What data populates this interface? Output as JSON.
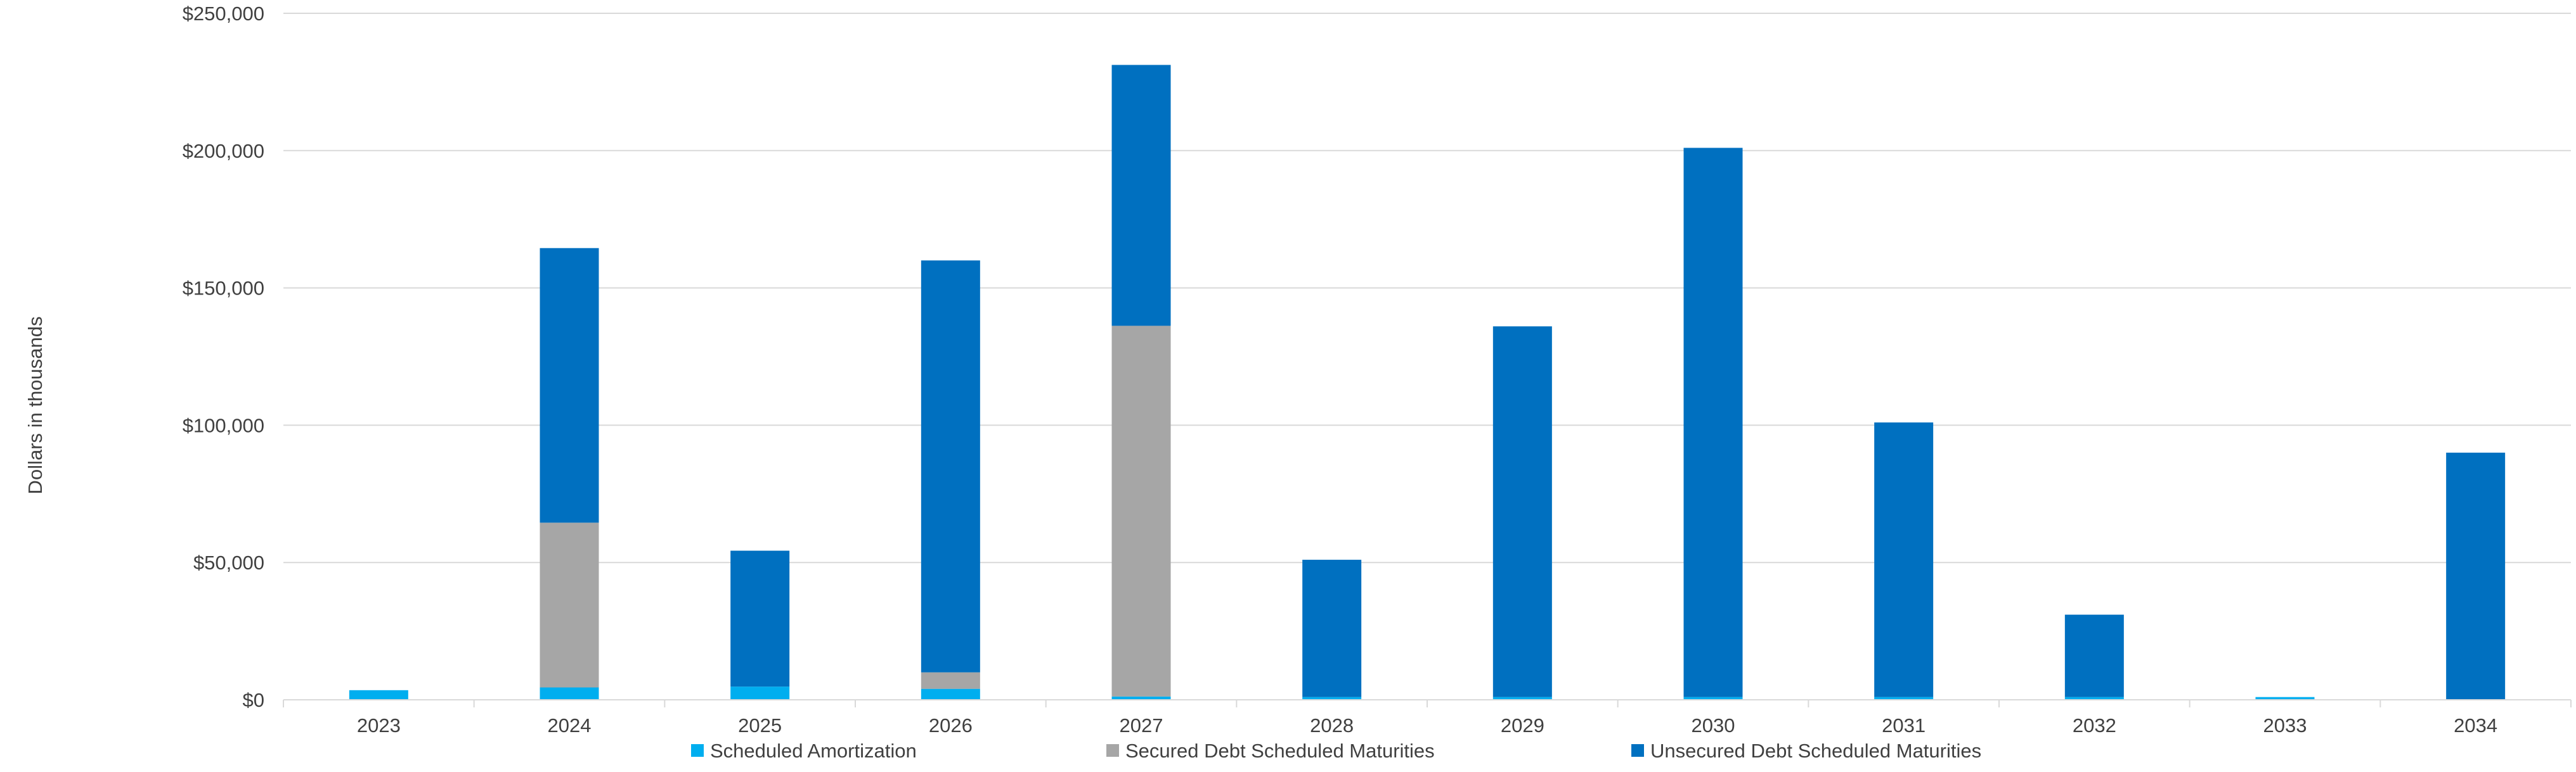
{
  "chart_data": {
    "type": "bar",
    "stacked": true,
    "title": "",
    "xlabel": "",
    "ylabel": "Dollars in thousands",
    "ylim": [
      0,
      250000
    ],
    "yticks": [
      0,
      50000,
      100000,
      150000,
      200000,
      250000
    ],
    "ytick_labels": [
      "$0",
      "$50,000",
      "$100,000",
      "$150,000",
      "$200,000",
      "$250,000"
    ],
    "grid": true,
    "legend_position": "bottom",
    "categories": [
      "2023",
      "2024",
      "2025",
      "2026",
      "2027",
      "2028",
      "2029",
      "2030",
      "2031",
      "2032",
      "2033",
      "2034"
    ],
    "series": [
      {
        "name": "Scheduled Amortization",
        "color": "#00AEEF",
        "values": [
          3500,
          4500,
          4800,
          4000,
          1200,
          1000,
          1000,
          1000,
          1000,
          1000,
          1000,
          0
        ]
      },
      {
        "name": "Secured Debt Scheduled Maturities",
        "color": "#A6A6A6",
        "values": [
          0,
          60000,
          0,
          6000,
          135000,
          0,
          0,
          0,
          0,
          0,
          0,
          0
        ]
      },
      {
        "name": "Unsecured Debt Scheduled Maturities",
        "color": "#0070C0",
        "values": [
          0,
          100000,
          49500,
          150000,
          95000,
          50000,
          135000,
          200000,
          100000,
          30000,
          0,
          90000
        ]
      }
    ]
  }
}
